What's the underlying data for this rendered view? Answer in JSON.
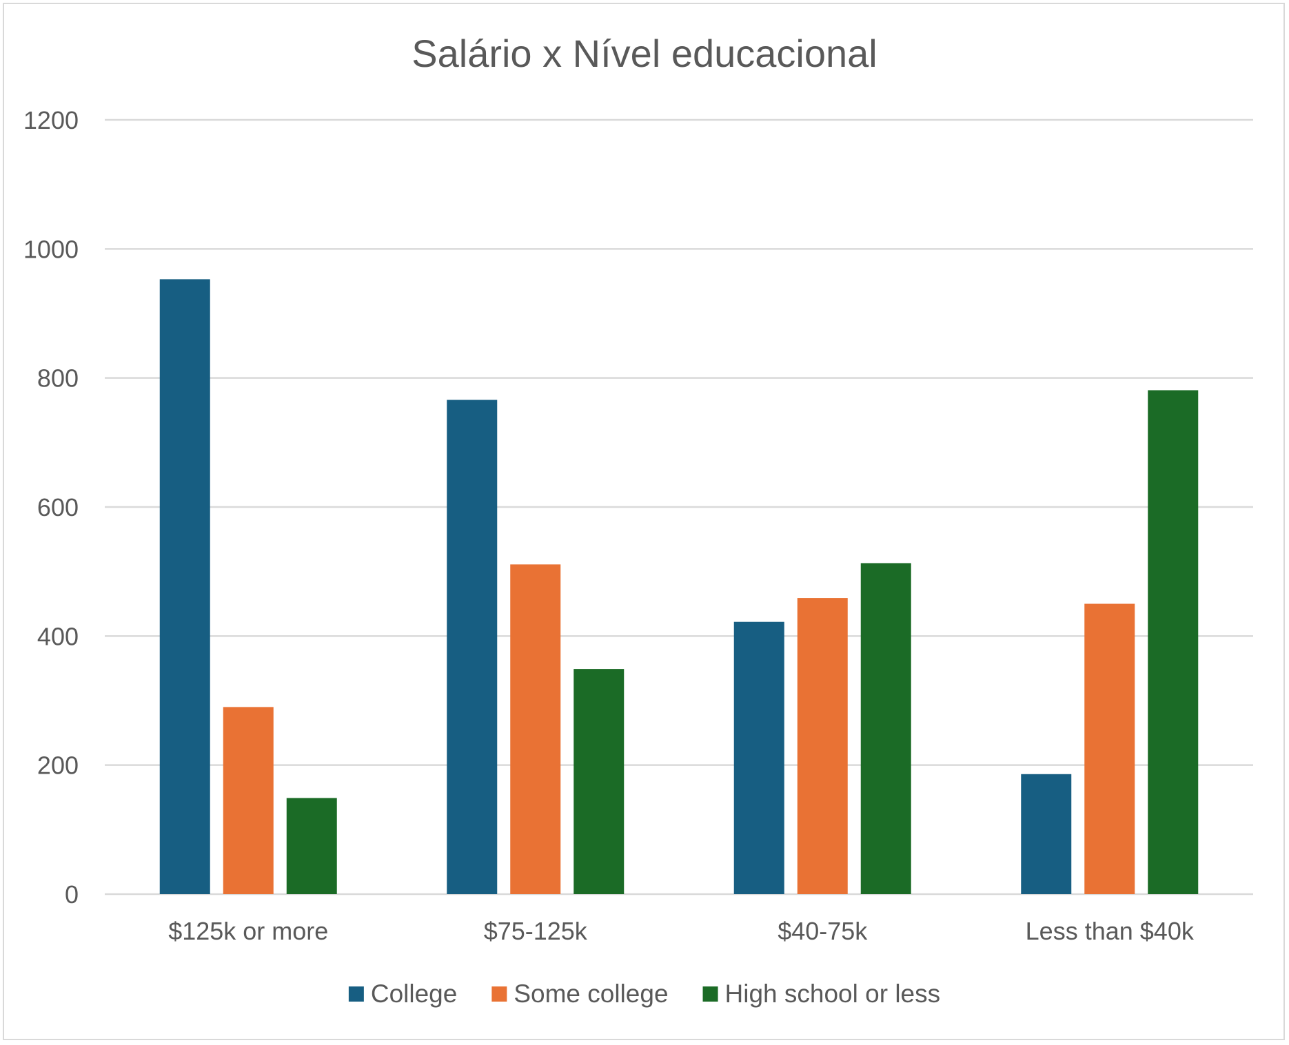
{
  "chart_data": {
    "type": "bar",
    "title": "Salário x Nível educacional",
    "xlabel": "",
    "ylabel": "",
    "categories": [
      "$125k or more",
      "$75-125k",
      "$40-75k",
      "Less than $40k"
    ],
    "series": [
      {
        "name": "College",
        "color": "#175e82",
        "values": [
          953,
          766,
          422,
          186
        ]
      },
      {
        "name": "Some college",
        "color": "#e97234",
        "values": [
          290,
          511,
          459,
          450
        ]
      },
      {
        "name": "High school or less",
        "color": "#1b6b26",
        "values": [
          149,
          349,
          513,
          781
        ]
      }
    ],
    "ylim": [
      0,
      1200
    ],
    "yticks": [
      0,
      200,
      400,
      600,
      800,
      1000,
      1200
    ],
    "grid": true,
    "gridline_color": "#d9d9d9",
    "legend_position": "bottom"
  }
}
